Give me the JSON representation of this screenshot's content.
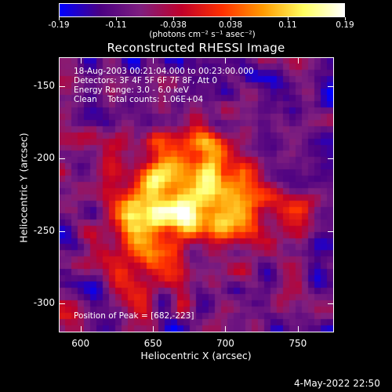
{
  "colorbar": {
    "tick_labels": [
      "-0.19",
      "-0.11",
      "-0.038",
      "0.038",
      "0.11",
      "0.19"
    ],
    "unit_label": "(photons cm⁻² s⁻¹ asec⁻²)"
  },
  "title": "Reconstructed RHESSI Image",
  "annotations": {
    "time_range": "18-Aug-2003 00:21:04.000 to 00:23:00.000",
    "detectors": "Detectors: 3F 4F 5F 6F 7F 8F, Att 0",
    "energy": "Energy Range: 3.0 - 6.0 keV",
    "clean": "Clean    Total counts: 1.06E+04",
    "peak": "Position of Peak = [682,-223]"
  },
  "axes": {
    "xlabel": "Heliocentric X (arcsec)",
    "ylabel": "Heliocentric Y (arcsec)",
    "x_ticks": [
      "600",
      "650",
      "700",
      "750"
    ],
    "y_ticks": [
      "-150",
      "-200",
      "-250",
      "-300"
    ],
    "x_range": [
      585,
      775
    ],
    "y_range": [
      -320,
      -130
    ]
  },
  "footer_date": "4-May-2022 22:50",
  "colors": {
    "colormap": [
      "#0000ff",
      "#4b0082",
      "#7f1f7f",
      "#c0002a",
      "#ff3000",
      "#ff9a00",
      "#ffff60",
      "#ffffff"
    ]
  }
}
